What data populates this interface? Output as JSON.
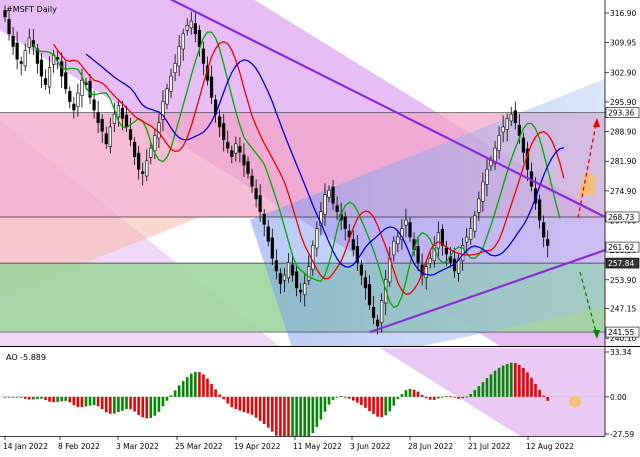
{
  "chart_data": [
    {
      "type": "candlestick",
      "title": "#MSFT Daily",
      "ylim": [
        238.5,
        319.5
      ],
      "yticks": [
        316.9,
        309.95,
        302.9,
        295.9,
        288.9,
        281.9,
        274.9,
        267.9,
        260.9,
        253.9,
        247.15,
        240.1
      ],
      "price_labels": [
        {
          "value": 293.36,
          "text": "293.36",
          "style": "light"
        },
        {
          "value": 268.73,
          "text": "268.73",
          "style": "light"
        },
        {
          "value": 261.62,
          "text": "261.62",
          "style": "light"
        },
        {
          "value": 257.84,
          "text": "257.84",
          "style": "dark"
        },
        {
          "value": 241.55,
          "text": "241.55",
          "style": "light"
        }
      ],
      "xtick_labels": [
        "14 Jan 2022",
        "8 Feb 2022",
        "3 Mar 2022",
        "25 Mar 2022",
        "19 Apr 2022",
        "11 May 2022",
        "3 Jun 2022",
        "28 Jun 2022",
        "21 Jul 2022",
        "12 Aug 2022"
      ],
      "horizontal_levels": [
        293.36,
        268.73,
        257.84,
        241.55
      ],
      "channel": {
        "description": "Descending channel with a rising support line",
        "upper_line": [
          [
            0,
            322.0
          ],
          [
            150,
            268.73
          ]
        ],
        "support_line": [
          [
            92,
            241.55
          ],
          [
            150,
            260.9
          ]
        ]
      },
      "moving_averages": [
        {
          "color": "#00aa00"
        },
        {
          "color": "#ee0000"
        },
        {
          "color": "#0000dd"
        }
      ],
      "candles_close": [
        316,
        312,
        309,
        306,
        305,
        308,
        311,
        309,
        305,
        302,
        300,
        304,
        307,
        306,
        302,
        299,
        296,
        294,
        298,
        301,
        300,
        297,
        294,
        291,
        289,
        286,
        290,
        293,
        295,
        292,
        290,
        287,
        283,
        280,
        279,
        282,
        285,
        288,
        291,
        296,
        299,
        302,
        305,
        309,
        312,
        314,
        315,
        312,
        309,
        305,
        301,
        297,
        293,
        290,
        287,
        285,
        283,
        286,
        284,
        281,
        279,
        276,
        273,
        270,
        267,
        263,
        259,
        256,
        253,
        255,
        258,
        255,
        252,
        251,
        253,
        257,
        262,
        266,
        270,
        274,
        275,
        272,
        270,
        268,
        266,
        264,
        261,
        258,
        255,
        252,
        248,
        245,
        243,
        249,
        254,
        259,
        263,
        264,
        266,
        268,
        264,
        261,
        258,
        255,
        257,
        259,
        262,
        265,
        262,
        260,
        258,
        256,
        259,
        262,
        264,
        266,
        269,
        273,
        277,
        280,
        282,
        285,
        288,
        290,
        292,
        293,
        291,
        288,
        284,
        280,
        276,
        272,
        268,
        264,
        262
      ]
    },
    {
      "type": "bar",
      "title": "AO -5.889",
      "ylim": [
        -27.59,
        33.34
      ],
      "yticks": [
        33.34,
        0.0,
        -27.59
      ],
      "ytick_labels": [
        "33.34",
        "0.00",
        "-27.59"
      ],
      "colors": {
        "up": "#008800",
        "down": "#ee0000"
      }
    }
  ]
}
